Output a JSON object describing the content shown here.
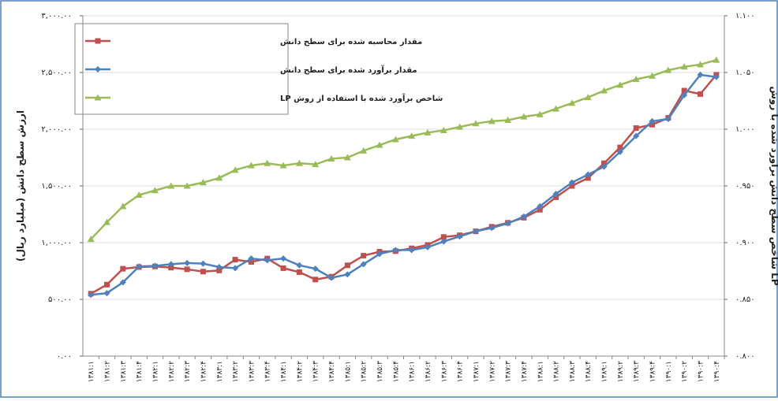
{
  "chart_data": {
    "type": "line",
    "y_label": "ارزش سطح دانش (میلیارد ریال)",
    "y2_label": "شاخص سطح دانش برآورد شده با روش LP",
    "categories": [
      "۱۳۸۱:۱",
      "۱۳۸۱:۲",
      "۱۳۸۱:۳",
      "۱۳۸۱:۴",
      "۱۳۸۲:۱",
      "۱۳۸۲:۲",
      "۱۳۸۲:۳",
      "۱۳۸۲:۴",
      "۱۳۸۳:۱",
      "۱۳۸۳:۲",
      "۱۳۸۳:۳",
      "۱۳۸۳:۴",
      "۱۳۸۴:۱",
      "۱۳۸۴:۲",
      "۱۳۸۴:۳",
      "۱۳۸۴:۴",
      "۱۳۸۵:۱",
      "۱۳۸۵:۲",
      "۱۳۸۵:۳",
      "۱۳۸۵:۴",
      "۱۳۸۶:۱",
      "۱۳۸۶:۲",
      "۱۳۸۶:۳",
      "۱۳۸۶:۴",
      "۱۳۸۷:۱",
      "۱۳۸۷:۲",
      "۱۳۸۷:۳",
      "۱۳۸۷:۴",
      "۱۳۸۸:۱",
      "۱۳۸۸:۲",
      "۱۳۸۸:۳",
      "۱۳۸۸:۴",
      "۱۳۸۹:۱",
      "۱۳۸۹:۲",
      "۱۳۸۹:۳",
      "۱۳۸۹:۴",
      "۱۳۹۰:۱",
      "۱۳۹۰:۲",
      "۱۳۹۰:۳",
      "۱۳۹۰:۴"
    ],
    "series": [
      {
        "name": "مقدار محاسبه شده برای سطح دانش",
        "color": "#c0504d",
        "marker": "square",
        "values": [
          550,
          630,
          770,
          785,
          790,
          780,
          765,
          745,
          755,
          850,
          830,
          860,
          775,
          740,
          675,
          700,
          800,
          885,
          920,
          925,
          950,
          980,
          1050,
          1065,
          1100,
          1140,
          1175,
          1220,
          1290,
          1400,
          1500,
          1570,
          1700,
          1840,
          2010,
          2040,
          2100,
          2340,
          2310,
          2480
        ]
      },
      {
        "name": "مقدار برآورد شده برای سطح دانش",
        "color": "#4f81bd",
        "marker": "diamond",
        "values": [
          540,
          555,
          650,
          790,
          795,
          810,
          820,
          815,
          785,
          775,
          860,
          845,
          860,
          800,
          770,
          690,
          720,
          810,
          900,
          935,
          935,
          960,
          1010,
          1055,
          1100,
          1130,
          1170,
          1230,
          1320,
          1430,
          1530,
          1600,
          1670,
          1800,
          1940,
          2070,
          2090,
          2300,
          2480,
          2460
        ]
      },
      {
        "name": "شاخص برآورد شده با استفاده از روش LP",
        "color": "#9bbb59",
        "marker": "triangle",
        "axis": "y2",
        "values": [
          0.903,
          0.918,
          0.932,
          0.942,
          0.946,
          0.95,
          0.95,
          0.953,
          0.957,
          0.964,
          0.968,
          0.97,
          0.968,
          0.97,
          0.969,
          0.974,
          0.975,
          0.981,
          0.986,
          0.991,
          0.994,
          0.997,
          0.999,
          1.002,
          1.005,
          1.007,
          1.008,
          1.011,
          1.013,
          1.018,
          1.023,
          1.028,
          1.034,
          1.039,
          1.044,
          1.047,
          1.052,
          1.055,
          1.057,
          1.061
        ]
      }
    ],
    "ylim": [
      0,
      3000
    ],
    "yticks": [
      {
        "value": 0,
        "label": "۰.۰۰"
      },
      {
        "value": 500,
        "label": "۵۰۰.۰۰"
      },
      {
        "value": 1000,
        "label": "۱,۰۰۰.۰۰"
      },
      {
        "value": 1500,
        "label": "۱,۵۰۰.۰۰"
      },
      {
        "value": 2000,
        "label": "۲,۰۰۰.۰۰"
      },
      {
        "value": 2500,
        "label": "۲,۵۰۰.۰۰"
      },
      {
        "value": 3000,
        "label": "۳,۰۰۰.۰۰"
      }
    ],
    "y2lim": [
      0.8,
      1.1
    ],
    "y2ticks": [
      {
        "value": 0.8,
        "label": "۰.۸۰۰"
      },
      {
        "value": 0.85,
        "label": "۰.۸۵۰"
      },
      {
        "value": 0.9,
        "label": "۰.۹۰۰"
      },
      {
        "value": 0.95,
        "label": "۰.۹۵۰"
      },
      {
        "value": 1.0,
        "label": "۱.۰۰۰"
      },
      {
        "value": 1.05,
        "label": "۱.۰۵۰"
      },
      {
        "value": 1.1,
        "label": "۱.۱۰۰"
      }
    ],
    "grid": true,
    "legend": "upper-left"
  }
}
